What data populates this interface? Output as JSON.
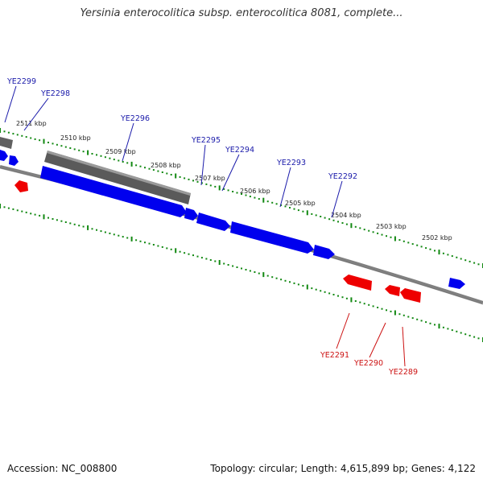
{
  "header": {
    "title": "Yersinia enterocolitica subsp. enterocolitica 8081, complete..."
  },
  "footer": {
    "accession": "Accession: NC_008800",
    "summary": "Topology: circular; Length: 4,615,899 bp; Genes: 4,122"
  },
  "colors": {
    "forward": "#0000ee",
    "reverse": "#ee0000",
    "other": "#666666",
    "backbone": "#808080",
    "ticks": "#118811",
    "forward_label": "#1a1aaa",
    "reverse_label": "#cc1111"
  },
  "map": {
    "ruler_labels": [
      "2511 kbp",
      "2510 kbp",
      "2509 kbp",
      "2508 kbp",
      "2507 kbp",
      "2506 kbp",
      "2505 kbp",
      "2504 kbp",
      "2503 kbp",
      "2502 kbp"
    ],
    "forward_genes": [
      "YE2299",
      "YE2298",
      "YE2296",
      "YE2295",
      "YE2294",
      "YE2293",
      "YE2292"
    ],
    "reverse_genes": [
      "YE2291",
      "YE2290",
      "YE2289"
    ]
  }
}
